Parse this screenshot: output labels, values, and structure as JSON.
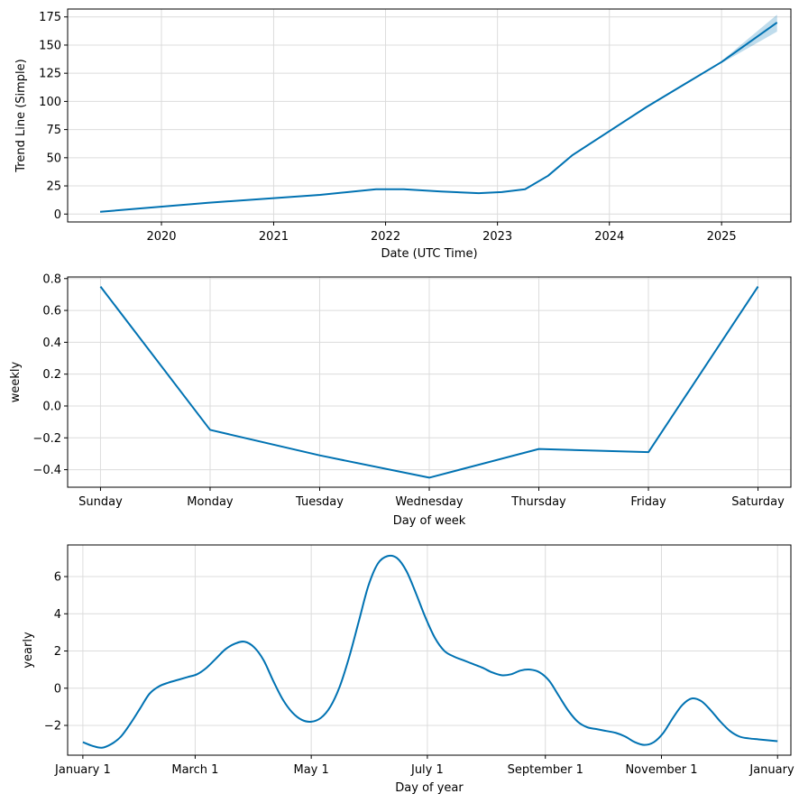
{
  "colors": {
    "line": "#0072B2",
    "band": "#0072B2",
    "grid": "#dcdcdc"
  },
  "chart_data": [
    {
      "type": "line",
      "xlabel": "Date (UTC Time)",
      "ylabel": "Trend Line (Simple)",
      "x_is_date": true,
      "xlim": [
        "2019-03-01",
        "2025-08-15"
      ],
      "ylim": [
        -7,
        182
      ],
      "xticks": [
        {
          "value": "2020-01-01",
          "label": "2020"
        },
        {
          "value": "2021-01-01",
          "label": "2021"
        },
        {
          "value": "2022-01-01",
          "label": "2022"
        },
        {
          "value": "2023-01-01",
          "label": "2023"
        },
        {
          "value": "2024-01-01",
          "label": "2024"
        },
        {
          "value": "2025-01-01",
          "label": "2025"
        }
      ],
      "yticks": [
        0,
        25,
        50,
        75,
        100,
        125,
        150,
        175
      ],
      "grid": true,
      "series": [
        {
          "x": [
            "2019-06-15",
            "2020-06-01",
            "2021-06-01",
            "2021-12-01",
            "2022-03-01",
            "2022-07-01",
            "2022-11-01",
            "2023-01-15",
            "2023-04-01",
            "2023-06-15",
            "2023-09-01",
            "2024-05-01",
            "2025-01-01",
            "2025-07-01"
          ],
          "values": [
            2,
            10,
            17,
            22,
            22,
            20,
            18.5,
            19.5,
            22,
            34,
            52,
            95,
            135,
            170
          ]
        }
      ],
      "uncertainty_band": {
        "x": [
          "2025-01-01",
          "2025-07-01"
        ],
        "lower": [
          134,
          162
        ],
        "upper": [
          136,
          177
        ]
      }
    },
    {
      "type": "line",
      "xlabel": "Day of week",
      "ylabel": "weekly",
      "categories": [
        "Sunday",
        "Monday",
        "Tuesday",
        "Wednesday",
        "Thursday",
        "Friday",
        "Saturday"
      ],
      "values": [
        0.75,
        -0.15,
        -0.31,
        -0.45,
        -0.27,
        -0.29,
        0.75
      ],
      "ylim": [
        -0.51,
        0.81
      ],
      "yticks": [
        -0.4,
        -0.2,
        0.0,
        0.2,
        0.4,
        0.6,
        0.8
      ],
      "ytick_labels": [
        "−0.4",
        "−0.2",
        "0.0",
        "0.2",
        "0.4",
        "0.6",
        "0.8"
      ],
      "grid": true
    },
    {
      "type": "line",
      "xlabel": "Day of year",
      "ylabel": "yearly",
      "xlim": [
        -8,
        372
      ],
      "ylim": [
        -3.6,
        7.7
      ],
      "xticks": [
        {
          "value": 0,
          "label": "January 1"
        },
        {
          "value": 59,
          "label": "March 1"
        },
        {
          "value": 120,
          "label": "May 1"
        },
        {
          "value": 181,
          "label": "July 1"
        },
        {
          "value": 243,
          "label": "September 1"
        },
        {
          "value": 304,
          "label": "November 1"
        },
        {
          "value": 365,
          "label": "January 1"
        }
      ],
      "yticks": [
        -2,
        0,
        2,
        4,
        6
      ],
      "ytick_labels": [
        "−2",
        "0",
        "2",
        "4",
        "6"
      ],
      "grid": true,
      "series": [
        {
          "x": [
            0,
            5,
            10,
            15,
            20,
            25,
            30,
            35,
            40,
            45,
            50,
            55,
            60,
            65,
            70,
            75,
            80,
            85,
            90,
            95,
            100,
            105,
            110,
            115,
            120,
            125,
            130,
            135,
            140,
            145,
            150,
            155,
            160,
            165,
            170,
            175,
            180,
            185,
            190,
            195,
            200,
            205,
            210,
            215,
            220,
            225,
            230,
            235,
            240,
            245,
            250,
            255,
            260,
            265,
            270,
            275,
            280,
            285,
            290,
            295,
            300,
            305,
            310,
            315,
            320,
            325,
            330,
            335,
            340,
            345,
            350,
            355,
            360,
            365
          ],
          "values": [
            -2.9,
            -3.1,
            -3.2,
            -3.0,
            -2.6,
            -1.9,
            -1.1,
            -0.3,
            0.1,
            0.3,
            0.45,
            0.6,
            0.75,
            1.1,
            1.6,
            2.1,
            2.4,
            2.5,
            2.2,
            1.5,
            0.4,
            -0.6,
            -1.3,
            -1.7,
            -1.8,
            -1.6,
            -1.0,
            0.1,
            1.7,
            3.6,
            5.5,
            6.7,
            7.1,
            7.0,
            6.3,
            5.1,
            3.8,
            2.7,
            2.0,
            1.7,
            1.5,
            1.3,
            1.1,
            0.85,
            0.7,
            0.75,
            0.95,
            1.0,
            0.85,
            0.4,
            -0.4,
            -1.2,
            -1.8,
            -2.1,
            -2.2,
            -2.3,
            -2.4,
            -2.6,
            -2.9,
            -3.05,
            -2.9,
            -2.4,
            -1.6,
            -0.9,
            -0.55,
            -0.7,
            -1.2,
            -1.8,
            -2.3,
            -2.6,
            -2.7,
            -2.75,
            -2.8,
            -2.85
          ]
        }
      ]
    }
  ]
}
